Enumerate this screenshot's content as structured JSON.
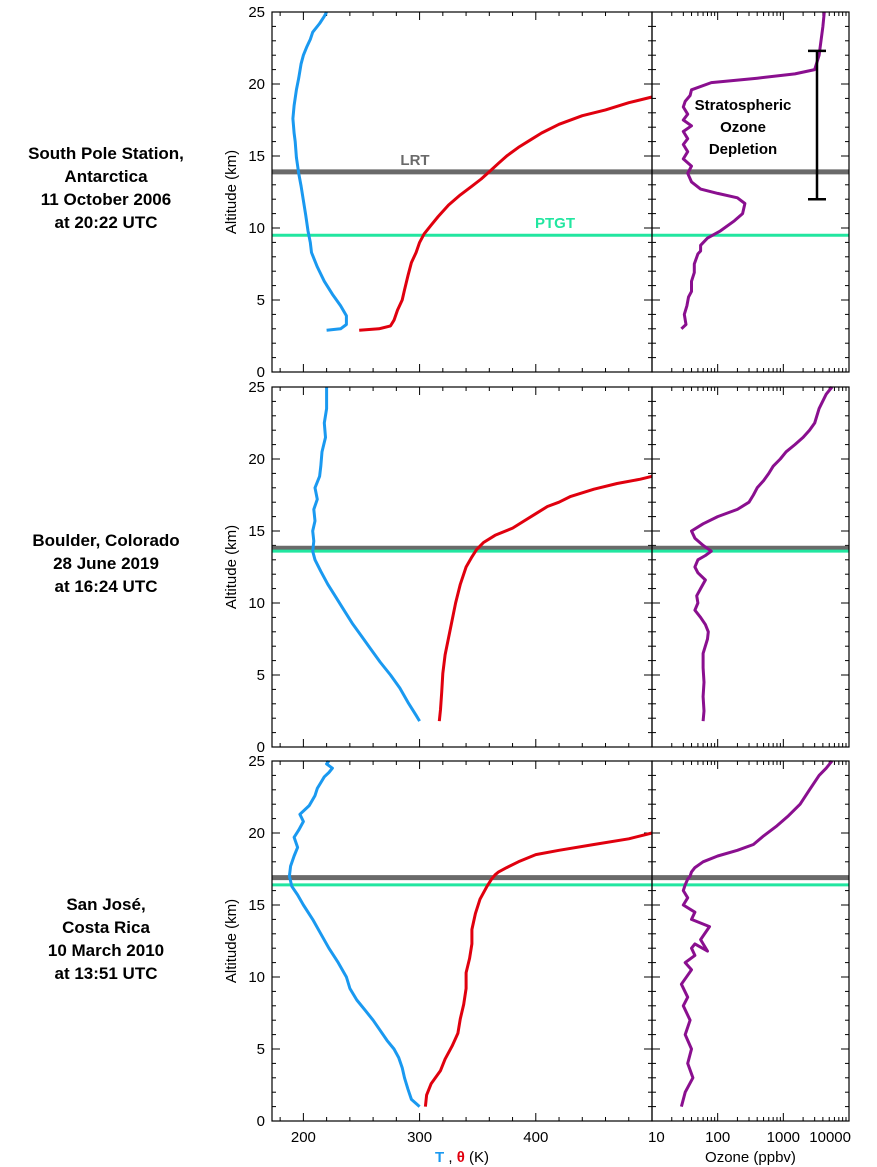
{
  "colors": {
    "temperature": "#1a99f0",
    "theta": "#e0000e",
    "ozone": "#8a0f8f",
    "lrt_line": "#6a6a6a",
    "ptgt_line": "#22e6a0",
    "axis": "#000000"
  },
  "labels": {
    "y_axis": "Altitude (km)",
    "x_axis_T": "T",
    "x_axis_sep": ",",
    "x_axis_theta": "θ",
    "x_axis_unit": "(K)",
    "x_axis_ozone": "Ozone (ppbv)",
    "lrt": "LRT",
    "ptgt": "PTGT",
    "depletion": [
      "Stratospheric",
      "Ozone",
      "Depletion"
    ]
  },
  "chart_data": [
    {
      "type": "line",
      "station": [
        "South Pole Station,",
        "Antarctica",
        "11 October 2006",
        "at 20:22 UTC"
      ],
      "xlim_temp": [
        173,
        500
      ],
      "xticks_temp": [
        200,
        300,
        400
      ],
      "xlim_ozone_log": [
        10,
        10000
      ],
      "xticks_ozone": [
        10,
        100,
        1000,
        10000
      ],
      "ylim": [
        0,
        25
      ],
      "yticks": [
        0,
        5,
        10,
        15,
        20,
        25
      ],
      "lrt_altitude_km": 13.9,
      "ptgt_altitude_km": 9.5,
      "depletion_range_km": [
        12.0,
        22.3
      ],
      "series": [
        {
          "name": "T",
          "x": [
            220,
            232,
            237,
            237,
            232,
            225,
            218,
            212,
            207,
            206,
            204,
            202,
            200,
            198,
            196,
            194,
            193,
            192,
            191,
            192,
            194,
            196,
            198,
            200,
            203,
            206,
            208,
            214,
            218,
            220
          ],
          "y": [
            2.9,
            3.0,
            3.3,
            3.9,
            4.6,
            5.4,
            6.3,
            7.3,
            8.3,
            9.0,
            9.8,
            10.9,
            11.9,
            12.9,
            13.8,
            14.9,
            16.0,
            16.6,
            17.6,
            18.5,
            19.6,
            20.4,
            21.4,
            22.0,
            22.6,
            23.1,
            23.6,
            24.2,
            24.7,
            25.0
          ]
        },
        {
          "name": "θ",
          "x": [
            248,
            265,
            275,
            278,
            281,
            285,
            287,
            290,
            293,
            297,
            300,
            304,
            310,
            316,
            325,
            335,
            345,
            353,
            360,
            368,
            375,
            385,
            395,
            405,
            420,
            440,
            460,
            480,
            500
          ],
          "y": [
            2.9,
            3.0,
            3.2,
            3.6,
            4.3,
            5.0,
            5.7,
            6.7,
            7.6,
            8.3,
            9.0,
            9.6,
            10.2,
            10.8,
            11.6,
            12.3,
            12.9,
            13.4,
            13.9,
            14.5,
            15.0,
            15.6,
            16.1,
            16.6,
            17.2,
            17.8,
            18.2,
            18.7,
            19.1
          ]
        },
        {
          "name": "ozone",
          "x": [
            28,
            33,
            31,
            34,
            36,
            40,
            40,
            44,
            44,
            50,
            55,
            55,
            70,
            110,
            180,
            240,
            260,
            200,
            100,
            55,
            40,
            35,
            40,
            30,
            35,
            30,
            35,
            30,
            40,
            30,
            35,
            30,
            32,
            38,
            40,
            80,
            400,
            1500,
            3000,
            3500,
            4000,
            4200
          ],
          "y": [
            3.0,
            3.3,
            4.0,
            4.6,
            5.2,
            5.6,
            6.3,
            6.9,
            7.5,
            8.2,
            8.4,
            8.8,
            9.3,
            9.8,
            10.5,
            11.0,
            11.7,
            12.1,
            12.4,
            12.7,
            13.2,
            13.8,
            14.3,
            14.8,
            15.3,
            15.8,
            16.2,
            16.7,
            17.1,
            17.5,
            17.9,
            18.4,
            18.8,
            19.2,
            19.6,
            20.1,
            20.4,
            20.7,
            21.0,
            22.0,
            24.0,
            25.0
          ]
        }
      ]
    },
    {
      "type": "line",
      "station": [
        "Boulder, Colorado",
        "28 June 2019",
        "at 16:24 UTC"
      ],
      "xlim_temp": [
        173,
        500
      ],
      "xticks_temp": [
        200,
        300,
        400
      ],
      "xlim_ozone_log": [
        10,
        10000
      ],
      "xticks_ozone": [
        10,
        100,
        1000,
        10000
      ],
      "ylim": [
        0,
        25
      ],
      "yticks": [
        0,
        5,
        10,
        15,
        20,
        25
      ],
      "lrt_altitude_km": 13.8,
      "ptgt_altitude_km": 13.6,
      "series": [
        {
          "name": "T",
          "x": [
            300,
            297,
            290,
            283,
            275,
            266,
            258,
            250,
            242,
            235,
            228,
            221,
            215,
            210,
            208,
            209,
            208,
            210,
            209,
            212,
            210,
            214,
            215,
            216,
            219,
            218,
            220,
            220
          ],
          "y": [
            1.8,
            2.2,
            3.1,
            4.1,
            5.0,
            5.9,
            6.8,
            7.7,
            8.6,
            9.5,
            10.4,
            11.3,
            12.2,
            13.0,
            13.6,
            14.3,
            15.0,
            15.7,
            16.5,
            17.2,
            18.0,
            18.8,
            19.5,
            20.5,
            21.5,
            22.5,
            23.5,
            25.0
          ]
        },
        {
          "name": "θ",
          "x": [
            317,
            318,
            319,
            320,
            322,
            325,
            328,
            331,
            335,
            340,
            345,
            349,
            355,
            365,
            380,
            390,
            400,
            410,
            420,
            430,
            450,
            470,
            490,
            500
          ],
          "y": [
            1.8,
            2.6,
            3.8,
            5.1,
            6.4,
            7.6,
            8.8,
            10.0,
            11.3,
            12.5,
            13.2,
            13.7,
            14.2,
            14.7,
            15.2,
            15.7,
            16.2,
            16.7,
            17.0,
            17.4,
            17.9,
            18.3,
            18.6,
            18.8
          ]
        },
        {
          "name": "ozone",
          "x": [
            60,
            62,
            60,
            62,
            60,
            60,
            70,
            72,
            65,
            55,
            45,
            50,
            48,
            55,
            65,
            50,
            45,
            50,
            65,
            80,
            60,
            45,
            40,
            60,
            100,
            200,
            300,
            350,
            400,
            500,
            600,
            700,
            900,
            1100,
            1500,
            2000,
            2500,
            3000,
            3500,
            4500,
            5500
          ],
          "y": [
            1.8,
            2.5,
            3.5,
            4.5,
            5.5,
            6.5,
            7.5,
            8.0,
            8.5,
            9.0,
            9.5,
            10.0,
            10.5,
            11.0,
            11.6,
            12.1,
            12.5,
            13.0,
            13.3,
            13.6,
            14.0,
            14.5,
            15.0,
            15.5,
            16.0,
            16.5,
            17.0,
            17.5,
            18.0,
            18.5,
            19.0,
            19.5,
            20.0,
            20.5,
            21.0,
            21.5,
            22.0,
            22.5,
            23.5,
            24.5,
            25.0
          ]
        }
      ]
    },
    {
      "type": "line",
      "station": [
        "San José,",
        "Costa Rica",
        "10 March 2010",
        "at 13:51 UTC"
      ],
      "xlim_temp": [
        173,
        500
      ],
      "xticks_temp": [
        200,
        300,
        400
      ],
      "xlim_ozone_log": [
        10,
        10000
      ],
      "xticks_ozone": [
        10,
        100,
        1000,
        10000
      ],
      "ylim": [
        0,
        25
      ],
      "yticks": [
        0,
        5,
        10,
        15,
        20,
        25
      ],
      "lrt_altitude_km": 16.9,
      "ptgt_altitude_km": 16.4,
      "series": [
        {
          "name": "T",
          "x": [
            300,
            293,
            290,
            287,
            285,
            282,
            278,
            272,
            266,
            260,
            253,
            246,
            240,
            237,
            230,
            222,
            215,
            208,
            200,
            195,
            190,
            188,
            189,
            192,
            195,
            192,
            196,
            200,
            197,
            205,
            210,
            212,
            215,
            218,
            222,
            225,
            220,
            222
          ],
          "y": [
            1.0,
            1.5,
            2.2,
            3.0,
            3.7,
            4.4,
            5.0,
            5.6,
            6.3,
            7.0,
            7.7,
            8.4,
            9.2,
            10.0,
            11.0,
            12.0,
            13.0,
            14.0,
            15.0,
            15.7,
            16.3,
            17.0,
            17.7,
            18.4,
            19.0,
            19.7,
            20.2,
            20.8,
            21.3,
            21.9,
            22.6,
            23.1,
            23.5,
            23.9,
            24.2,
            24.5,
            24.8,
            25.0
          ]
        },
        {
          "name": "θ",
          "x": [
            305,
            306,
            310,
            318,
            322,
            328,
            333,
            335,
            338,
            340,
            340,
            343,
            345,
            345,
            348,
            352,
            358,
            362,
            365,
            368,
            375,
            385,
            400,
            420,
            450,
            480,
            500
          ],
          "y": [
            1.0,
            1.8,
            2.6,
            3.5,
            4.3,
            5.2,
            6.1,
            7.1,
            8.1,
            9.2,
            10.3,
            11.3,
            12.3,
            13.3,
            14.4,
            15.4,
            16.3,
            16.8,
            17.1,
            17.3,
            17.6,
            18.0,
            18.5,
            18.8,
            19.2,
            19.6,
            20.0
          ]
        },
        {
          "name": "ozone",
          "x": [
            28,
            32,
            42,
            35,
            40,
            32,
            38,
            30,
            35,
            28,
            40,
            32,
            45,
            40,
            45,
            70,
            55,
            75,
            40,
            45,
            30,
            35,
            30,
            32,
            35,
            38,
            40,
            45,
            60,
            100,
            200,
            350,
            500,
            800,
            1200,
            1800,
            2500,
            3500,
            4500,
            5500
          ],
          "y": [
            1.0,
            2.0,
            3.0,
            4.0,
            5.0,
            6.0,
            7.0,
            8.0,
            8.6,
            9.5,
            10.5,
            11.0,
            11.5,
            12.0,
            12.3,
            11.8,
            12.6,
            13.5,
            14.0,
            14.5,
            15.0,
            15.5,
            16.0,
            16.4,
            16.8,
            17.0,
            17.3,
            17.6,
            18.0,
            18.4,
            18.8,
            19.2,
            19.8,
            20.5,
            21.2,
            22.0,
            23.0,
            24.0,
            24.5,
            25.0
          ]
        }
      ]
    }
  ]
}
